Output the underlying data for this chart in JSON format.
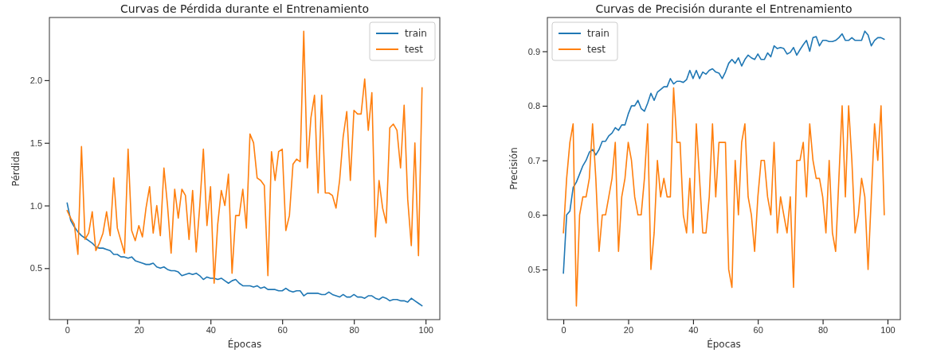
{
  "chart_data": [
    {
      "type": "line",
      "title": "Curvas de Pérdida durante el Entrenamiento",
      "xlabel": "Épocas",
      "ylabel": "Pérdida",
      "legend": "top right",
      "grid": false,
      "xlim": [
        -4.95,
        103.95
      ],
      "ylim": [
        0.09,
        2.5
      ],
      "xticks": [
        0,
        20,
        40,
        60,
        80,
        100
      ],
      "yticks": [
        {
          "value": 0.5,
          "label": "0.5"
        },
        {
          "value": 1,
          "label": "1.0"
        },
        {
          "value": 1.5,
          "label": "1.5"
        },
        {
          "value": 2,
          "label": "2.0"
        }
      ],
      "x": [
        0,
        1,
        2,
        3,
        4,
        5,
        6,
        7,
        8,
        9,
        10,
        11,
        12,
        13,
        14,
        15,
        16,
        17,
        18,
        19,
        20,
        21,
        22,
        23,
        24,
        25,
        26,
        27,
        28,
        29,
        30,
        31,
        32,
        33,
        34,
        35,
        36,
        37,
        38,
        39,
        40,
        41,
        42,
        43,
        44,
        45,
        46,
        47,
        48,
        49,
        50,
        51,
        52,
        53,
        54,
        55,
        56,
        57,
        58,
        59,
        60,
        61,
        62,
        63,
        64,
        65,
        66,
        67,
        68,
        69,
        70,
        71,
        72,
        73,
        74,
        75,
        76,
        77,
        78,
        79,
        80,
        81,
        82,
        83,
        84,
        85,
        86,
        87,
        88,
        89,
        90,
        91,
        92,
        93,
        94,
        95,
        96,
        97,
        98,
        99
      ],
      "series": [
        {
          "name": "train",
          "color": "#1f77b4",
          "values": [
            1.02,
            0.88,
            0.83,
            0.79,
            0.76,
            0.74,
            0.72,
            0.7,
            0.67,
            0.66,
            0.66,
            0.65,
            0.64,
            0.61,
            0.61,
            0.59,
            0.59,
            0.58,
            0.59,
            0.56,
            0.55,
            0.54,
            0.53,
            0.53,
            0.54,
            0.51,
            0.5,
            0.51,
            0.49,
            0.48,
            0.48,
            0.47,
            0.44,
            0.45,
            0.46,
            0.45,
            0.46,
            0.44,
            0.41,
            0.43,
            0.42,
            0.42,
            0.41,
            0.42,
            0.4,
            0.38,
            0.4,
            0.41,
            0.38,
            0.36,
            0.36,
            0.36,
            0.35,
            0.36,
            0.34,
            0.35,
            0.33,
            0.33,
            0.33,
            0.32,
            0.32,
            0.34,
            0.32,
            0.31,
            0.32,
            0.32,
            0.28,
            0.3,
            0.3,
            0.3,
            0.3,
            0.29,
            0.29,
            0.31,
            0.29,
            0.28,
            0.27,
            0.29,
            0.27,
            0.27,
            0.29,
            0.27,
            0.27,
            0.26,
            0.28,
            0.28,
            0.26,
            0.25,
            0.27,
            0.26,
            0.24,
            0.25,
            0.25,
            0.24,
            0.24,
            0.23,
            0.26,
            0.24,
            0.22,
            0.2
          ]
        },
        {
          "name": "test",
          "color": "#ff7f0e",
          "values": [
            0.96,
            0.9,
            0.85,
            0.61,
            1.47,
            0.73,
            0.78,
            0.95,
            0.64,
            0.7,
            0.78,
            0.95,
            0.76,
            1.22,
            0.82,
            0.72,
            0.62,
            1.45,
            0.8,
            0.72,
            0.84,
            0.75,
            0.98,
            1.15,
            0.78,
            1.0,
            0.76,
            1.3,
            1.0,
            0.62,
            1.13,
            0.9,
            1.13,
            1.08,
            0.73,
            1.12,
            0.63,
            1.0,
            1.45,
            0.84,
            1.15,
            0.38,
            0.85,
            1.12,
            1.0,
            1.25,
            0.46,
            0.92,
            0.92,
            1.13,
            0.82,
            1.57,
            1.5,
            1.22,
            1.2,
            1.16,
            0.44,
            1.43,
            1.2,
            1.43,
            1.45,
            0.8,
            0.92,
            1.33,
            1.37,
            1.35,
            2.39,
            1.3,
            1.7,
            1.88,
            1.1,
            1.88,
            1.1,
            1.1,
            1.08,
            0.98,
            1.2,
            1.55,
            1.75,
            1.2,
            1.76,
            1.73,
            1.73,
            2.01,
            1.6,
            1.9,
            0.75,
            1.2,
            0.98,
            0.86,
            1.62,
            1.65,
            1.6,
            1.3,
            1.8,
            1.05,
            0.68,
            1.5,
            0.6,
            1.94
          ]
        }
      ]
    },
    {
      "type": "line",
      "title": "Curvas de Precisión durante el Entrenamiento",
      "xlabel": "Épocas",
      "ylabel": "Precisión",
      "legend": "top left",
      "grid": false,
      "xlim": [
        -4.95,
        103.95
      ],
      "ylim": [
        0.408,
        0.962
      ],
      "xticks": [
        0,
        20,
        40,
        60,
        80,
        100
      ],
      "yticks": [
        0.5,
        0.6,
        0.7,
        0.8,
        0.9
      ],
      "x": [
        0,
        1,
        2,
        3,
        4,
        5,
        6,
        7,
        8,
        9,
        10,
        11,
        12,
        13,
        14,
        15,
        16,
        17,
        18,
        19,
        20,
        21,
        22,
        23,
        24,
        25,
        26,
        27,
        28,
        29,
        30,
        31,
        32,
        33,
        34,
        35,
        36,
        37,
        38,
        39,
        40,
        41,
        42,
        43,
        44,
        45,
        46,
        47,
        48,
        49,
        50,
        51,
        52,
        53,
        54,
        55,
        56,
        57,
        58,
        59,
        60,
        61,
        62,
        63,
        64,
        65,
        66,
        67,
        68,
        69,
        70,
        71,
        72,
        73,
        74,
        75,
        76,
        77,
        78,
        79,
        80,
        81,
        82,
        83,
        84,
        85,
        86,
        87,
        88,
        89,
        90,
        91,
        92,
        93,
        94,
        95,
        96,
        97,
        98,
        99
      ],
      "series": [
        {
          "name": "train",
          "color": "#1f77b4",
          "values": [
            0.493,
            0.6,
            0.607,
            0.65,
            0.66,
            0.675,
            0.69,
            0.7,
            0.715,
            0.72,
            0.71,
            0.72,
            0.735,
            0.735,
            0.745,
            0.75,
            0.76,
            0.755,
            0.765,
            0.765,
            0.785,
            0.8,
            0.8,
            0.81,
            0.795,
            0.79,
            0.805,
            0.823,
            0.81,
            0.825,
            0.83,
            0.835,
            0.835,
            0.85,
            0.84,
            0.845,
            0.845,
            0.843,
            0.848,
            0.865,
            0.85,
            0.865,
            0.85,
            0.862,
            0.858,
            0.865,
            0.868,
            0.862,
            0.86,
            0.85,
            0.862,
            0.878,
            0.885,
            0.878,
            0.888,
            0.873,
            0.885,
            0.893,
            0.888,
            0.885,
            0.895,
            0.885,
            0.885,
            0.897,
            0.89,
            0.91,
            0.905,
            0.907,
            0.905,
            0.895,
            0.898,
            0.907,
            0.893,
            0.903,
            0.912,
            0.92,
            0.9,
            0.925,
            0.927,
            0.91,
            0.92,
            0.92,
            0.918,
            0.918,
            0.92,
            0.925,
            0.932,
            0.92,
            0.92,
            0.925,
            0.92,
            0.92,
            0.92,
            0.937,
            0.93,
            0.91,
            0.92,
            0.925,
            0.925,
            0.922
          ]
        },
        {
          "name": "test",
          "color": "#ff7f0e",
          "values": [
            0.567,
            0.667,
            0.733,
            0.767,
            0.433,
            0.6,
            0.633,
            0.633,
            0.667,
            0.767,
            0.667,
            0.533,
            0.6,
            0.6,
            0.633,
            0.667,
            0.733,
            0.533,
            0.633,
            0.667,
            0.733,
            0.7,
            0.633,
            0.6,
            0.6,
            0.667,
            0.767,
            0.5,
            0.567,
            0.7,
            0.633,
            0.667,
            0.633,
            0.633,
            0.833,
            0.733,
            0.733,
            0.6,
            0.567,
            0.667,
            0.567,
            0.767,
            0.667,
            0.567,
            0.567,
            0.633,
            0.767,
            0.633,
            0.733,
            0.733,
            0.733,
            0.5,
            0.467,
            0.7,
            0.6,
            0.733,
            0.767,
            0.633,
            0.6,
            0.533,
            0.633,
            0.7,
            0.7,
            0.633,
            0.6,
            0.733,
            0.567,
            0.633,
            0.6,
            0.567,
            0.633,
            0.467,
            0.7,
            0.7,
            0.733,
            0.633,
            0.767,
            0.7,
            0.667,
            0.667,
            0.633,
            0.567,
            0.7,
            0.567,
            0.533,
            0.667,
            0.8,
            0.633,
            0.8,
            0.7,
            0.567,
            0.6,
            0.667,
            0.633,
            0.5,
            0.633,
            0.767,
            0.7,
            0.8,
            0.6
          ]
        }
      ]
    }
  ]
}
